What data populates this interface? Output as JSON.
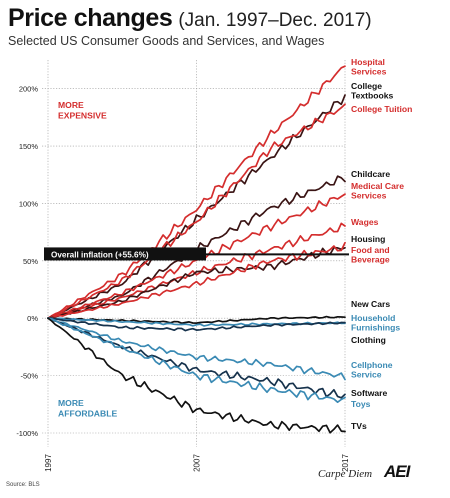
{
  "chart_data": {
    "type": "line",
    "title": "Price changes",
    "title_range": "(Jan. 1997–Dec. 2017)",
    "subtitle": "Selected US Consumer Goods and Services, and Wages",
    "x_tick_labels": [
      "1997",
      "2007",
      "2017"
    ],
    "xlim": [
      1997,
      2017
    ],
    "ylim": [
      -100,
      225
    ],
    "y_ticks": [
      200,
      150,
      100,
      50,
      0,
      -50,
      -100
    ],
    "y_tick_labels": [
      "200%",
      "150%",
      "100%",
      "50%",
      "0%",
      "-50%",
      "-100%"
    ],
    "grid": true,
    "colors": {
      "red": "#d42d2d",
      "dark": "#3a1414",
      "black": "#111111",
      "blue": "#3a8ab4",
      "navy": "#16324c"
    },
    "annotations": {
      "more_expensive": [
        "MORE",
        "EXPENSIVE"
      ],
      "more_affordable": [
        "MORE",
        "AFFORDABLE"
      ],
      "overall_inflation": {
        "label": "Overall inflation (+55.6%)",
        "value": 55.6
      }
    },
    "series": [
      {
        "name": "Hospital Services",
        "label_lines": [
          "Hospital",
          "Services"
        ],
        "color": "red",
        "x": [
          1997,
          2002,
          2007,
          2012,
          2017
        ],
        "values": [
          0,
          38,
          95,
          160,
          220
        ]
      },
      {
        "name": "College Textbooks",
        "label_lines": [
          "College",
          "Textbooks"
        ],
        "color": "dark",
        "x": [
          1997,
          2002,
          2007,
          2012,
          2017
        ],
        "values": [
          0,
          30,
          86,
          140,
          193
        ]
      },
      {
        "name": "College Tuition",
        "label_lines": [
          "College Tuition"
        ],
        "color": "red",
        "x": [
          1997,
          2002,
          2007,
          2012,
          2017
        ],
        "values": [
          0,
          33,
          84,
          148,
          185
        ]
      },
      {
        "name": "Childcare",
        "label_lines": [
          "Childcare"
        ],
        "color": "dark",
        "x": [
          1997,
          2002,
          2007,
          2012,
          2017
        ],
        "values": [
          0,
          20,
          60,
          96,
          123
        ]
      },
      {
        "name": "Medical Care Services",
        "label_lines": [
          "Medical Care",
          "Services"
        ],
        "color": "red",
        "x": [
          1997,
          2002,
          2007,
          2012,
          2017
        ],
        "values": [
          0,
          22,
          50,
          80,
          108
        ]
      },
      {
        "name": "Wages",
        "label_lines": [
          "Wages"
        ],
        "color": "red",
        "x": [
          1997,
          2002,
          2007,
          2012,
          2017
        ],
        "values": [
          0,
          18,
          40,
          60,
          80
        ]
      },
      {
        "name": "Housing",
        "label_lines": [
          "Housing"
        ],
        "color": "dark",
        "x": [
          1997,
          2002,
          2007,
          2012,
          2017
        ],
        "values": [
          0,
          15,
          40,
          45,
          62
        ]
      },
      {
        "name": "Food and Beverage",
        "label_lines": [
          "Food and",
          "Beverage"
        ],
        "color": "red",
        "x": [
          1997,
          2002,
          2007,
          2012,
          2017
        ],
        "values": [
          0,
          13,
          30,
          50,
          62
        ]
      },
      {
        "name": "New Cars",
        "label_lines": [
          "New Cars"
        ],
        "color": "black",
        "x": [
          1997,
          2002,
          2007,
          2012,
          2017
        ],
        "values": [
          0,
          -2,
          -4,
          0,
          1
        ]
      },
      {
        "name": "Household Furnishings",
        "label_lines": [
          "Household",
          "Furnishings"
        ],
        "color": "blue",
        "x": [
          1997,
          2002,
          2007,
          2012,
          2017
        ],
        "values": [
          0,
          -3,
          -6,
          -5,
          -4
        ]
      },
      {
        "name": "Clothing",
        "label_lines": [
          "Clothing"
        ],
        "color": "navy",
        "x": [
          1997,
          2002,
          2007,
          2012,
          2017
        ],
        "values": [
          0,
          -8,
          -10,
          -6,
          -4
        ]
      },
      {
        "name": "Cellphone Service",
        "label_lines": [
          "Cellphone",
          "Service"
        ],
        "color": "blue",
        "x": [
          1997,
          2002,
          2007,
          2012,
          2017
        ],
        "values": [
          0,
          -20,
          -34,
          -40,
          -51
        ]
      },
      {
        "name": "Software",
        "label_lines": [
          "Software"
        ],
        "color": "navy",
        "x": [
          1997,
          2002,
          2007,
          2012,
          2017
        ],
        "values": [
          0,
          -25,
          -45,
          -55,
          -68
        ]
      },
      {
        "name": "Toys",
        "label_lines": [
          "Toys"
        ],
        "color": "blue",
        "x": [
          1997,
          2002,
          2007,
          2012,
          2017
        ],
        "values": [
          0,
          -26,
          -50,
          -62,
          -72
        ]
      },
      {
        "name": "TVs",
        "label_lines": [
          "TVs"
        ],
        "color": "black",
        "x": [
          1997,
          2002,
          2007,
          2012,
          2017
        ],
        "values": [
          0,
          -50,
          -80,
          -93,
          -97
        ]
      }
    ]
  },
  "footer": {
    "source": "Source: BLS",
    "brand": "Carpe Diem",
    "logo": "AEI"
  }
}
